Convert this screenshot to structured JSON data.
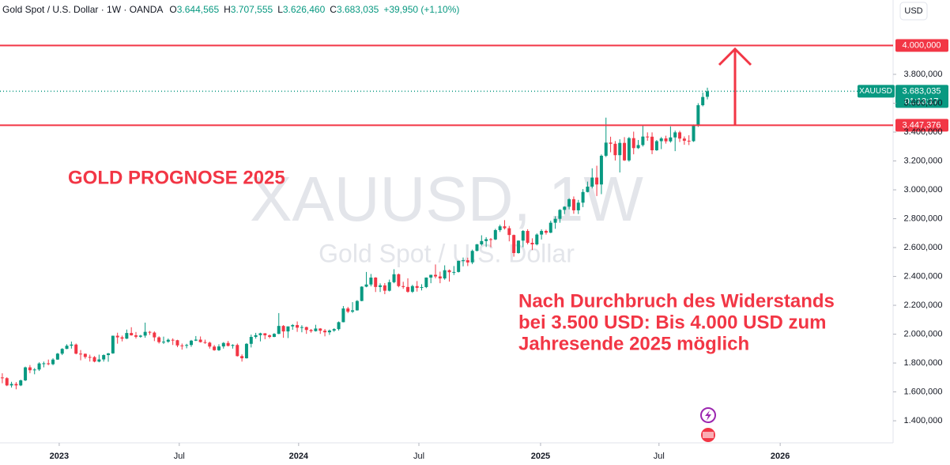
{
  "chart_data": {
    "type": "candlestick",
    "header": {
      "title": "Gold Spot / U.S. Dollar · 1W · OANDA",
      "fields": [
        {
          "key": "O",
          "text": "3.644,565"
        },
        {
          "key": "H",
          "text": "3.707,555"
        },
        {
          "key": "L",
          "text": "3.626,460"
        },
        {
          "key": "C",
          "text": "3.683,035"
        }
      ],
      "change": "+39,950 (+1,10%)"
    },
    "currency": "USD",
    "watermark": "XAUUSD, 1W",
    "watermark_subtitle": "Gold Spot / U.S. Dollar",
    "title": "GOLD PROGNOSE 2025",
    "annotation_lines": [
      "Nach Durchbruch des Widerstands",
      "bei 3.500 USD: Bis 4.000 USD zum",
      "Jahresende 2025 möglich"
    ],
    "up_color": "#089981",
    "down_color": "#f23645",
    "ohlc": [
      [
        1700,
        1729,
        1660,
        1695
      ],
      [
        1695,
        1702,
        1640,
        1645
      ],
      [
        1645,
        1670,
        1630,
        1655
      ],
      [
        1655,
        1668,
        1618,
        1645
      ],
      [
        1645,
        1685,
        1640,
        1680
      ],
      [
        1680,
        1775,
        1675,
        1770
      ],
      [
        1770,
        1786,
        1730,
        1750
      ],
      [
        1750,
        1765,
        1722,
        1755
      ],
      [
        1755,
        1805,
        1745,
        1797
      ],
      [
        1797,
        1810,
        1770,
        1798
      ],
      [
        1798,
        1824,
        1785,
        1792
      ],
      [
        1792,
        1833,
        1785,
        1824
      ],
      [
        1824,
        1870,
        1822,
        1865
      ],
      [
        1865,
        1903,
        1855,
        1898
      ],
      [
        1898,
        1930,
        1896,
        1920
      ],
      [
        1920,
        1949,
        1900,
        1928
      ],
      [
        1928,
        1935,
        1860,
        1865
      ],
      [
        1865,
        1890,
        1819,
        1864
      ],
      [
        1864,
        1866,
        1830,
        1842
      ],
      [
        1842,
        1858,
        1810,
        1841
      ],
      [
        1841,
        1848,
        1805,
        1810
      ],
      [
        1810,
        1858,
        1805,
        1825
      ],
      [
        1825,
        1860,
        1810,
        1855
      ],
      [
        1855,
        1870,
        1809,
        1867
      ],
      [
        1867,
        1990,
        1864,
        1989
      ],
      [
        1989,
        2010,
        1934,
        1978
      ],
      [
        1978,
        1990,
        1950,
        1969
      ],
      [
        1969,
        2032,
        1966,
        2008
      ],
      [
        2008,
        2048,
        1990,
        1992
      ],
      [
        1992,
        2015,
        1970,
        1982
      ],
      [
        1982,
        1995,
        1975,
        1990
      ],
      [
        1990,
        2080,
        1975,
        2016
      ],
      [
        2016,
        2022,
        1995,
        2011
      ],
      [
        2011,
        2019,
        1952,
        1978
      ],
      [
        1978,
        1985,
        1935,
        1945
      ],
      [
        1945,
        1983,
        1932,
        1948
      ],
      [
        1948,
        1970,
        1940,
        1961
      ],
      [
        1961,
        1971,
        1925,
        1958
      ],
      [
        1958,
        1961,
        1910,
        1922
      ],
      [
        1922,
        1935,
        1893,
        1920
      ],
      [
        1920,
        1933,
        1902,
        1925
      ],
      [
        1925,
        1960,
        1912,
        1955
      ],
      [
        1955,
        1987,
        1952,
        1962
      ],
      [
        1962,
        1984,
        1942,
        1945
      ],
      [
        1945,
        1962,
        1933,
        1941
      ],
      [
        1941,
        1948,
        1900,
        1914
      ],
      [
        1914,
        1925,
        1885,
        1889
      ],
      [
        1889,
        1930,
        1884,
        1915
      ],
      [
        1915,
        1945,
        1900,
        1939
      ],
      [
        1939,
        1953,
        1915,
        1919
      ],
      [
        1919,
        1930,
        1900,
        1925
      ],
      [
        1925,
        1935,
        1845,
        1848
      ],
      [
        1848,
        1860,
        1810,
        1833
      ],
      [
        1833,
        1938,
        1831,
        1933
      ],
      [
        1933,
        1997,
        1908,
        1981
      ],
      [
        1981,
        2009,
        1969,
        1993
      ],
      [
        1993,
        2010,
        1950,
        2006
      ],
      [
        2006,
        2007,
        1965,
        1992
      ],
      [
        1992,
        1998,
        1971,
        1981
      ],
      [
        1981,
        2007,
        1979,
        2002
      ],
      [
        2002,
        2146,
        2000,
        2057
      ],
      [
        2057,
        2063,
        1975,
        2019
      ],
      [
        2019,
        2047,
        1973,
        2054
      ],
      [
        2054,
        2070,
        2030,
        2063
      ],
      [
        2063,
        2088,
        2016,
        2045
      ],
      [
        2045,
        2062,
        2013,
        2049
      ],
      [
        2049,
        2052,
        2002,
        2029
      ],
      [
        2029,
        2036,
        2010,
        2021
      ],
      [
        2021,
        2065,
        2018,
        2039
      ],
      [
        2039,
        2042,
        2002,
        2024
      ],
      [
        2024,
        2036,
        1985,
        2013
      ],
      [
        2013,
        2032,
        1995,
        2025
      ],
      [
        2025,
        2041,
        2016,
        2035
      ],
      [
        2035,
        2088,
        2025,
        2083
      ],
      [
        2083,
        2195,
        2082,
        2178
      ],
      [
        2178,
        2189,
        2146,
        2156
      ],
      [
        2156,
        2222,
        2147,
        2165
      ],
      [
        2165,
        2236,
        2163,
        2230
      ],
      [
        2230,
        2332,
        2228,
        2329
      ],
      [
        2329,
        2431,
        2325,
        2344
      ],
      [
        2344,
        2417,
        2331,
        2392
      ],
      [
        2392,
        2395,
        2292,
        2327
      ],
      [
        2327,
        2352,
        2292,
        2338
      ],
      [
        2338,
        2354,
        2277,
        2301
      ],
      [
        2301,
        2378,
        2296,
        2360
      ],
      [
        2360,
        2450,
        2353,
        2415
      ],
      [
        2415,
        2420,
        2325,
        2333
      ],
      [
        2333,
        2363,
        2314,
        2327
      ],
      [
        2327,
        2387,
        2287,
        2294
      ],
      [
        2294,
        2342,
        2286,
        2333
      ],
      [
        2333,
        2368,
        2295,
        2321
      ],
      [
        2321,
        2346,
        2303,
        2326
      ],
      [
        2326,
        2393,
        2319,
        2392
      ],
      [
        2392,
        2412,
        2353,
        2411
      ],
      [
        2411,
        2483,
        2387,
        2400
      ],
      [
        2400,
        2433,
        2353,
        2386
      ],
      [
        2386,
        2477,
        2377,
        2443
      ],
      [
        2443,
        2448,
        2364,
        2429
      ],
      [
        2429,
        2472,
        2410,
        2431
      ],
      [
        2431,
        2509,
        2427,
        2508
      ],
      [
        2508,
        2531,
        2470,
        2512
      ],
      [
        2512,
        2530,
        2472,
        2497
      ],
      [
        2497,
        2586,
        2485,
        2577
      ],
      [
        2577,
        2625,
        2574,
        2622
      ],
      [
        2622,
        2685,
        2614,
        2645
      ],
      [
        2645,
        2672,
        2604,
        2658
      ],
      [
        2658,
        2666,
        2603,
        2656
      ],
      [
        2656,
        2730,
        2652,
        2721
      ],
      [
        2721,
        2758,
        2708,
        2747
      ],
      [
        2747,
        2790,
        2725,
        2734
      ],
      [
        2734,
        2750,
        2643,
        2687
      ],
      [
        2687,
        2690,
        2537,
        2562
      ],
      [
        2562,
        2650,
        2558,
        2648
      ],
      [
        2648,
        2721,
        2603,
        2715
      ],
      [
        2715,
        2727,
        2622,
        2633
      ],
      [
        2633,
        2664,
        2583,
        2622
      ],
      [
        2622,
        2698,
        2615,
        2690
      ],
      [
        2690,
        2726,
        2656,
        2715
      ],
      [
        2715,
        2724,
        2690,
        2703
      ],
      [
        2703,
        2786,
        2700,
        2772
      ],
      [
        2772,
        2817,
        2730,
        2799
      ],
      [
        2799,
        2866,
        2772,
        2861
      ],
      [
        2861,
        2886,
        2832,
        2883
      ],
      [
        2883,
        2942,
        2865,
        2935
      ],
      [
        2935,
        2954,
        2834,
        2858
      ],
      [
        2858,
        2930,
        2832,
        2911
      ],
      [
        2911,
        3005,
        2880,
        2985
      ],
      [
        2985,
        3057,
        2982,
        3022
      ],
      [
        3022,
        3149,
        3010,
        3085
      ],
      [
        3085,
        3167,
        2957,
        3037
      ],
      [
        3037,
        3245,
        2970,
        3236
      ],
      [
        3236,
        3500,
        3227,
        3327
      ],
      [
        3327,
        3368,
        3260,
        3319
      ],
      [
        3319,
        3338,
        3203,
        3240
      ],
      [
        3240,
        3350,
        3120,
        3325
      ],
      [
        3325,
        3365,
        3200,
        3204
      ],
      [
        3204,
        3366,
        3195,
        3358
      ],
      [
        3358,
        3403,
        3246,
        3289
      ],
      [
        3289,
        3345,
        3283,
        3310
      ],
      [
        3310,
        3452,
        3300,
        3369
      ],
      [
        3369,
        3398,
        3340,
        3368
      ],
      [
        3368,
        3398,
        3247,
        3274
      ],
      [
        3274,
        3345,
        3270,
        3337
      ],
      [
        3337,
        3366,
        3282,
        3356
      ],
      [
        3356,
        3375,
        3320,
        3336
      ],
      [
        3336,
        3439,
        3327,
        3363
      ],
      [
        3363,
        3410,
        3268,
        3398
      ],
      [
        3398,
        3409,
        3331,
        3355
      ],
      [
        3355,
        3370,
        3312,
        3340
      ],
      [
        3340,
        3378,
        3310,
        3337
      ],
      [
        3337,
        3453,
        3332,
        3447
      ],
      [
        3447,
        3600,
        3436,
        3586
      ],
      [
        3586,
        3674,
        3578,
        3643
      ],
      [
        3644.565,
        3707.555,
        3626.46,
        3683.035
      ]
    ],
    "xlim": [
      -0.5,
      193.3
    ],
    "xticks": [
      {
        "value": 12.35,
        "label": "2023"
      },
      {
        "value": 38.4,
        "label": "Jul"
      },
      {
        "value": 64.3,
        "label": "2024"
      },
      {
        "value": 90.4,
        "label": "Jul"
      },
      {
        "value": 116.8,
        "label": "2025"
      },
      {
        "value": 142.5,
        "label": "Jul"
      },
      {
        "value": 168.8,
        "label": "2026"
      }
    ],
    "ylim": [
      1247,
      4315
    ],
    "yticks": [
      {
        "value": 1400,
        "label": "1.400,000"
      },
      {
        "value": 1600,
        "label": "1.600,000"
      },
      {
        "value": 1800,
        "label": "1.800,000"
      },
      {
        "value": 2000,
        "label": "2.000,000"
      },
      {
        "value": 2200,
        "label": "2.200,000"
      },
      {
        "value": 2400,
        "label": "2.400,000"
      },
      {
        "value": 2600,
        "label": "2.600,000"
      },
      {
        "value": 2800,
        "label": "2.800,000"
      },
      {
        "value": 3000,
        "label": "3.000,000"
      },
      {
        "value": 3200,
        "label": "3.200,000"
      },
      {
        "value": 3400,
        "label": "3.400,000"
      },
      {
        "value": 3600,
        "label": "3.600,000"
      },
      {
        "value": 3800,
        "label": "3.800,000"
      }
    ],
    "hlines": [
      {
        "value": 4000,
        "label": "4.000,000",
        "color": "#f23645"
      },
      {
        "value": 3447.376,
        "label": "3.447,376",
        "color": "#f23645"
      }
    ],
    "price_line": {
      "value": 3683.035,
      "label": "3.683,035",
      "symbol": "XAUUSD",
      "countdown": "01:13:17",
      "color": "#089981"
    }
  }
}
